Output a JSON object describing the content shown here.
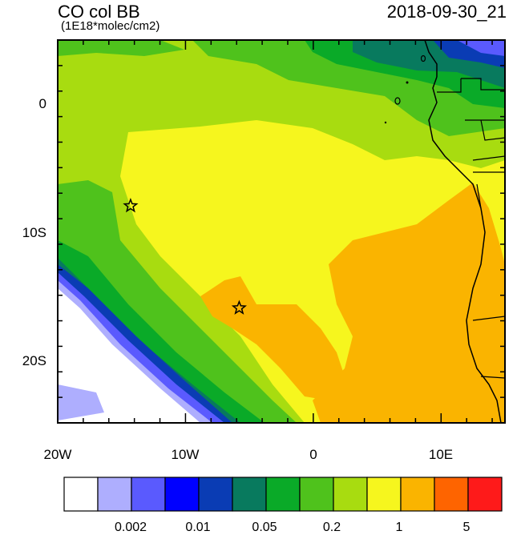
{
  "title": "CO col BB",
  "units": "(1E18*molec/cm2)",
  "datetime": "2018-09-30_21",
  "axes": {
    "x_ticks": [
      "20W",
      "10W",
      "0",
      "10E"
    ],
    "y_ticks": [
      "0",
      "10S",
      "20S"
    ],
    "lon_range": [
      -20,
      15
    ],
    "lat_range": [
      -25,
      5
    ]
  },
  "markers": [
    {
      "name": "star-marker",
      "lon": -14.3,
      "lat": -8.0
    },
    {
      "name": "star-marker",
      "lon": -5.8,
      "lat": -16.0
    }
  ],
  "colorbar": {
    "colors": [
      "#ffffff",
      "#aeaefe",
      "#5a5afe",
      "#0000ff",
      "#0a3cb4",
      "#087a5e",
      "#0aaa28",
      "#4fc21c",
      "#a8dc10",
      "#f6f61e",
      "#fab400",
      "#fe6400",
      "#fe1a1a"
    ],
    "labels": [
      "0.002",
      "0.01",
      "0.05",
      "0.2",
      "1",
      "5"
    ]
  },
  "palette": {
    "ocean_white": "#ffffff",
    "lightblue": "#aeaefe",
    "blue": "#5a5afe",
    "navy": "#0a3cb4",
    "teal": "#087a5e",
    "green": "#0aaa28",
    "midgreen": "#4fc21c",
    "lightgreen": "#a8dc10",
    "yellow": "#f6f61e",
    "orange": "#fab400"
  }
}
